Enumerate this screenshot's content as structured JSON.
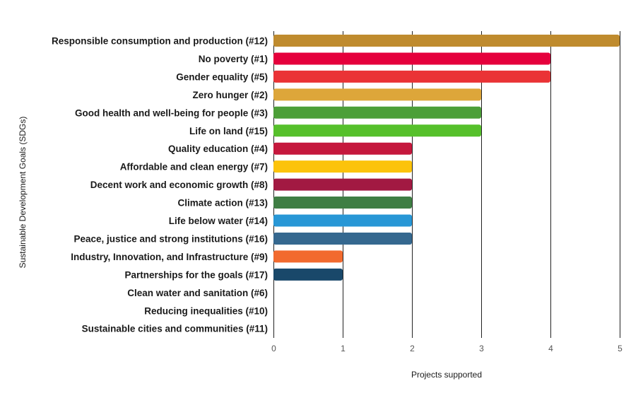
{
  "chart_data": {
    "type": "bar",
    "orientation": "horizontal",
    "title": "",
    "xlabel": "Projects supported",
    "ylabel": "Sustainable Development Goals (SDGs)",
    "xlim": [
      0,
      5
    ],
    "xticks": [
      "0",
      "1",
      "2",
      "3",
      "4",
      "5"
    ],
    "grid": true,
    "legend": "none",
    "categories": [
      "Responsible consumption and production (#12)",
      "No poverty (#1)",
      "Gender equality (#5)",
      "Zero hunger (#2)",
      "Good health and well-being for people (#3)",
      "Life on land (#15)",
      "Quality education (#4)",
      "Affordable and clean energy (#7)",
      "Decent work and economic growth (#8)",
      "Climate action (#13)",
      "Life below water (#14)",
      "Peace, justice and strong institutions (#16)",
      "Industry, Innovation, and Infrastructure (#9)",
      "Partnerships for the goals (#17)",
      "Clean water and sanitation (#6)",
      "Reducing inequalities (#10)",
      "Sustainable cities and communities (#11)"
    ],
    "values": [
      5,
      4,
      4,
      3,
      3,
      3,
      2,
      2,
      2,
      2,
      2,
      2,
      1,
      1,
      0,
      0,
      0
    ],
    "colors": [
      "#BF8B2E",
      "#E5003C",
      "#EA3336",
      "#DDA63A",
      "#4C9F38",
      "#56C02B",
      "#C5183D",
      "#FCC30B",
      "#A21942",
      "#3F7E44",
      "#2897D6",
      "#35688F",
      "#F26A2E",
      "#19486A",
      "#26BDE2",
      "#DD1367",
      "#FD9D24"
    ]
  }
}
